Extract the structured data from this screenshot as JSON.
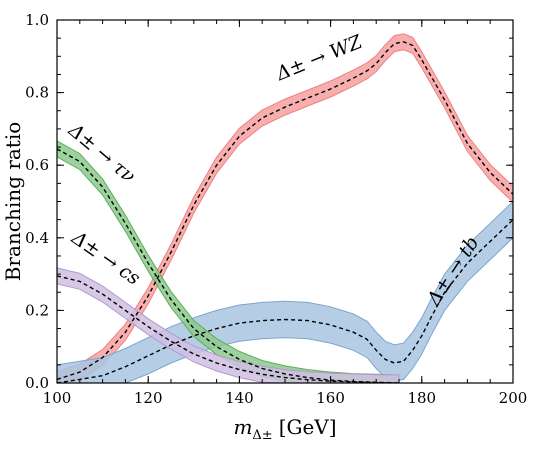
{
  "chart_data": {
    "type": "line",
    "xlabel": "m",
    "xlabel_sub": "Δ±",
    "xlabel_unit": "[GeV]",
    "ylabel": "Branching ratio",
    "xlim": [
      100,
      200
    ],
    "ylim": [
      0.0,
      1.0
    ],
    "xticks": [
      100,
      120,
      140,
      160,
      180,
      200
    ],
    "xtick_labels": [
      "100",
      "120",
      "140",
      "160",
      "180",
      "200"
    ],
    "yticks": [
      0.0,
      0.2,
      0.4,
      0.6,
      0.8,
      1.0
    ],
    "ytick_labels": [
      "0.0",
      "0.2",
      "0.4",
      "0.6",
      "0.8",
      "1.0"
    ],
    "grid": false,
    "series": [
      {
        "name": "Δ± → WZ",
        "color": "#f08080",
        "band_color": "#f4a0a0",
        "x": [
          100,
          105,
          110,
          115,
          120,
          125,
          130,
          135,
          140,
          145,
          150,
          155,
          160,
          165,
          168,
          170,
          172,
          174,
          176,
          178,
          180,
          185,
          190,
          195,
          200
        ],
        "y": [
          0.01,
          0.03,
          0.07,
          0.14,
          0.24,
          0.36,
          0.49,
          0.6,
          0.68,
          0.73,
          0.76,
          0.785,
          0.81,
          0.84,
          0.86,
          0.88,
          0.91,
          0.935,
          0.94,
          0.93,
          0.89,
          0.78,
          0.66,
          0.58,
          0.52
        ],
        "band": 0.022
      },
      {
        "name": "Δ± → tb",
        "color": "#7aa6d0",
        "band_color": "#a8c6e2",
        "x": [
          100,
          105,
          110,
          115,
          120,
          125,
          130,
          135,
          140,
          145,
          150,
          155,
          160,
          165,
          168,
          170,
          172,
          174,
          176,
          178,
          180,
          182,
          185,
          190,
          195,
          200
        ],
        "y": [
          0.0,
          0.01,
          0.02,
          0.045,
          0.075,
          0.105,
          0.13,
          0.15,
          0.165,
          0.172,
          0.175,
          0.172,
          0.16,
          0.14,
          0.12,
          0.09,
          0.065,
          0.055,
          0.06,
          0.09,
          0.13,
          0.18,
          0.25,
          0.33,
          0.39,
          0.45
        ],
        "band": 0.05
      },
      {
        "name": "Δ± → τν",
        "color": "#5cae5c",
        "band_color": "#8cc98c",
        "x": [
          100,
          105,
          110,
          115,
          120,
          125,
          130,
          135,
          140,
          145,
          150,
          155,
          160,
          165,
          170,
          175
        ],
        "y": [
          0.645,
          0.61,
          0.54,
          0.44,
          0.33,
          0.23,
          0.15,
          0.1,
          0.065,
          0.04,
          0.025,
          0.015,
          0.008,
          0.004,
          0.002,
          0.0
        ],
        "band": 0.022
      },
      {
        "name": "Δ± → cs",
        "color": "#b39ad0",
        "band_color": "#d0c0e2",
        "x": [
          100,
          105,
          110,
          115,
          120,
          125,
          130,
          135,
          140,
          145,
          150,
          155,
          160,
          165,
          170,
          175
        ],
        "y": [
          0.295,
          0.28,
          0.245,
          0.2,
          0.155,
          0.115,
          0.08,
          0.055,
          0.037,
          0.024,
          0.015,
          0.009,
          0.005,
          0.003,
          0.001,
          0.0
        ],
        "band": 0.022
      }
    ],
    "annotations": [
      {
        "text": "Δ± → WZ",
        "x": 158,
        "y": 0.88,
        "rotate": -22
      },
      {
        "text": "Δ± → τν",
        "x": 109,
        "y": 0.62,
        "rotate": 40
      },
      {
        "text": "Δ± → cs",
        "x": 110,
        "y": 0.33,
        "rotate": 35
      },
      {
        "text": "Δ± → tb",
        "x": 188,
        "y": 0.3,
        "rotate": -57
      }
    ]
  }
}
